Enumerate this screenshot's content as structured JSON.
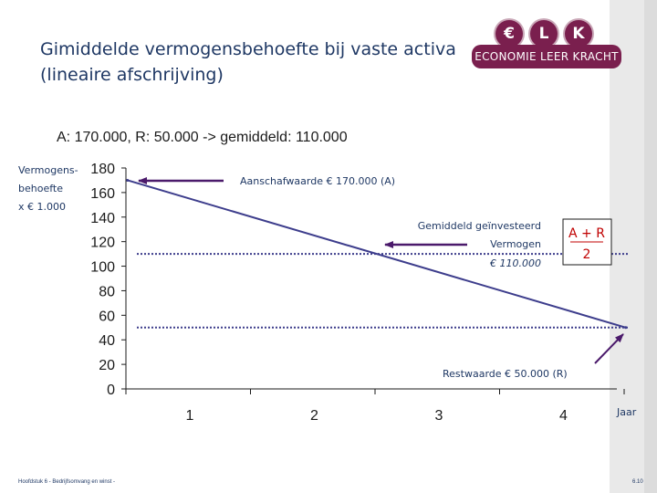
{
  "header": {
    "title_line1": "Gimiddelde vermogensbehoefte bij vaste activa",
    "title_line2": "(lineaire afschrijving)",
    "logo": {
      "letters": [
        "€",
        "L",
        "K"
      ],
      "text": "ECONOMIE LEER KRACHT",
      "color": "#7a1f4e"
    }
  },
  "subtitle": "A: 170.000, R: 50.000 -> gemiddeld: 110.000",
  "ylabel_lines": [
    "Vermogens-",
    "behoefte",
    "x € 1.000"
  ],
  "annotations": {
    "aanschaf": "Aanschafwaarde € 170.000 (A)",
    "gemiddeld_line1": "Gemiddeld geïnvesteerd",
    "gemiddeld_line2": "Vermogen",
    "gemiddeld_line3": "€ 110.000",
    "rest": "Restwaarde € 50.000 (R)",
    "ar_top": "A + R",
    "ar_bottom": "2"
  },
  "footer": {
    "left": "Hoofdstuk 6 - Bedrijfsomvang en winst -",
    "right": "6.10"
  },
  "colors": {
    "line": "#3d3d8c",
    "arrow": "#4b1a6b",
    "text": "#1f3864",
    "accent": "#c00000"
  },
  "chart_data": {
    "type": "line",
    "categories": [
      "1",
      "2",
      "3",
      "4"
    ],
    "xlabel": "Jaar",
    "ylabel": "Vermogens-behoefte x € 1.000",
    "ylim": [
      0,
      180
    ],
    "yticks": [
      0,
      20,
      40,
      60,
      80,
      100,
      120,
      140,
      160,
      180
    ],
    "series": [
      {
        "name": "Vermogensbehoefte",
        "x": [
          0.5,
          4.5
        ],
        "values": [
          170,
          50
        ]
      }
    ],
    "reference_lines": [
      {
        "label": "Gemiddeld geïnvesteerd Vermogen",
        "value": 110
      },
      {
        "label": "Restwaarde",
        "value": 50
      }
    ]
  }
}
